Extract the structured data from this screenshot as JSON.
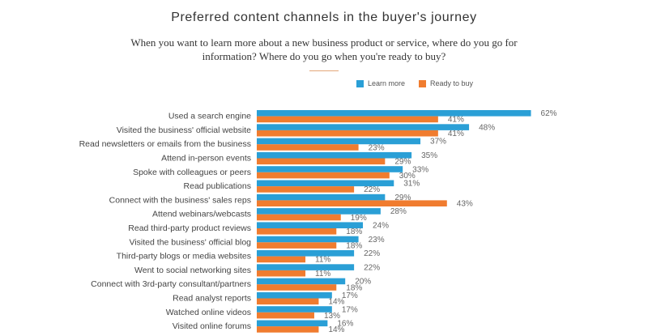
{
  "chart_data": {
    "type": "bar",
    "orientation": "horizontal",
    "title": "Preferred content channels in the buyer's journey",
    "subtitle": "When you want to learn more about a new business product or service, where do you go for information? Where do you go when you're ready to buy?",
    "legend_placement": "top-right",
    "grid": false,
    "value_suffix": "%",
    "categories": [
      "Used a search engine",
      "Visited the business' official website",
      "Read newsletters or emails from the business",
      "Attend in-person events",
      "Spoke with colleagues or peers",
      "Read publications",
      "Connect with the business' sales reps",
      "Attend webinars/webcasts",
      "Read third-party product reviews",
      "Visited the business' official blog",
      "Third-party blogs or media websites",
      "Went to social networking sites",
      "Connect with 3rd-party consultant/partners",
      "Read analyst reports",
      "Watched online videos",
      "Visited online forums"
    ],
    "series": [
      {
        "name": "Learn more",
        "color": "#2a9fd6",
        "values": [
          62,
          48,
          37,
          35,
          33,
          31,
          29,
          28,
          24,
          23,
          22,
          22,
          20,
          17,
          17,
          16
        ]
      },
      {
        "name": "Ready to buy",
        "color": "#f07c2f",
        "values": [
          41,
          41,
          23,
          29,
          30,
          22,
          43,
          19,
          18,
          18,
          11,
          11,
          18,
          14,
          13,
          14
        ]
      }
    ]
  }
}
